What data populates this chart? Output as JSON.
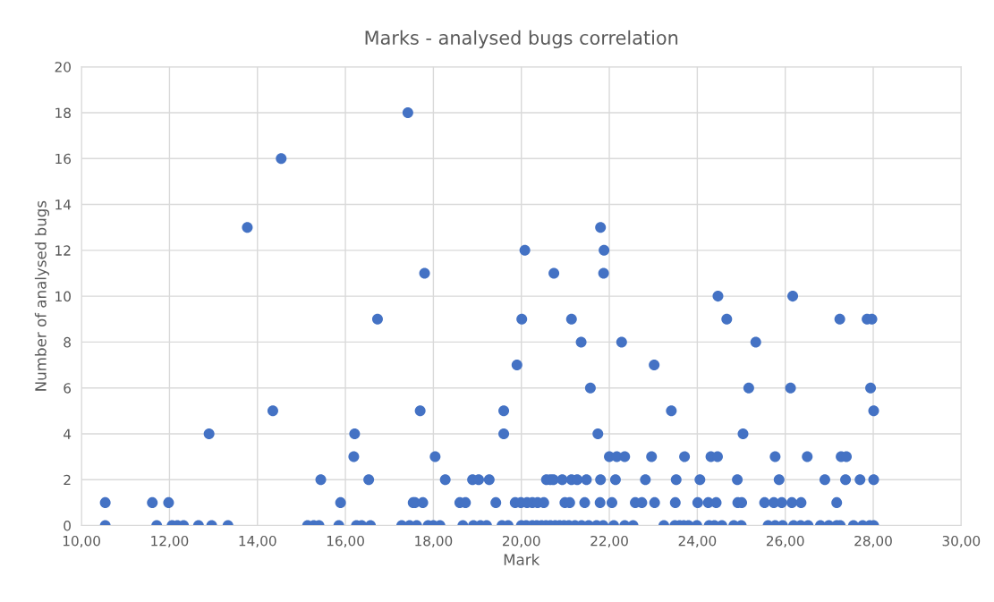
{
  "chart_data": {
    "type": "scatter",
    "title": "Marks - analysed bugs correlation",
    "xlabel": "Mark",
    "ylabel": "Number of analysed bugs",
    "series": [
      {
        "color": "#4472c4",
        "x": [
          10.54,
          11.71,
          12.06,
          12.18,
          12.32,
          12.66,
          12.96,
          13.33,
          10.54,
          11.61,
          11.98,
          12.9,
          13.77,
          14.35,
          14.54,
          16.73,
          17.42,
          17.8,
          15.44,
          16.53,
          18.27,
          18.89,
          19.03,
          19.27,
          16.19,
          18.04,
          16.21,
          19.6,
          17.7,
          19.6,
          15.89,
          17.54,
          17.58,
          17.76,
          18.6,
          18.73,
          19.42,
          19.86,
          15.14,
          15.28,
          15.4,
          15.85,
          16.25,
          16.37,
          16.57,
          17.28,
          17.46,
          17.62,
          17.88,
          18.0,
          18.15,
          18.67,
          18.91,
          19.07,
          19.21,
          19.56,
          19.7,
          20.0,
          21.8,
          20.08,
          21.88,
          20.74,
          21.87,
          24.47,
          26.17,
          20.01,
          21.14,
          24.67,
          27.24,
          27.86,
          27.97,
          21.36,
          22.28,
          25.33,
          19.9,
          23.02,
          21.57,
          25.17,
          26.12,
          27.94,
          23.41,
          28.01,
          21.74,
          25.04,
          22.0,
          22.17,
          22.35,
          22.96,
          23.71,
          24.31,
          24.46,
          25.77,
          26.5,
          27.27,
          27.39,
          20.57,
          20.66,
          20.73,
          20.93,
          21.14,
          21.27,
          21.48,
          21.8,
          22.14,
          22.82,
          23.52,
          24.06,
          24.91,
          25.86,
          26.9,
          27.37,
          27.7,
          28.01,
          19.99,
          20.13,
          20.25,
          20.37,
          20.51,
          20.99,
          21.1,
          21.44,
          21.79,
          22.06,
          22.59,
          22.74,
          23.03,
          23.5,
          24.01,
          24.25,
          24.43,
          24.92,
          25.01,
          25.53,
          25.74,
          25.92,
          26.15,
          26.36,
          27.17,
          20.11,
          20.25,
          20.35,
          20.46,
          20.56,
          20.66,
          20.77,
          20.87,
          20.97,
          21.08,
          21.22,
          21.37,
          21.53,
          21.71,
          21.86,
          22.1,
          22.35,
          22.54,
          23.24,
          23.49,
          23.6,
          23.69,
          23.8,
          23.99,
          24.27,
          24.39,
          24.56,
          24.83,
          25.0,
          25.61,
          25.77,
          25.94,
          26.19,
          26.35,
          26.52,
          26.8,
          26.99,
          27.17,
          27.25,
          27.55,
          27.76,
          27.92,
          28.01
        ],
        "values": [
          0,
          0,
          0,
          0,
          0,
          0,
          0,
          0,
          1,
          1,
          1,
          4,
          13,
          5,
          16,
          9,
          18,
          11,
          2,
          2,
          2,
          2,
          2,
          2,
          3,
          3,
          4,
          4,
          5,
          5,
          1,
          1,
          1,
          1,
          1,
          1,
          1,
          1,
          0,
          0,
          0,
          0,
          0,
          0,
          0,
          0,
          0,
          0,
          0,
          0,
          0,
          0,
          0,
          0,
          0,
          0,
          0,
          0,
          13,
          12,
          12,
          11,
          11,
          10,
          10,
          9,
          9,
          9,
          9,
          9,
          9,
          8,
          8,
          8,
          7,
          7,
          6,
          6,
          6,
          6,
          5,
          5,
          4,
          4,
          3,
          3,
          3,
          3,
          3,
          3,
          3,
          3,
          3,
          3,
          3,
          2,
          2,
          2,
          2,
          2,
          2,
          2,
          2,
          2,
          2,
          2,
          2,
          2,
          2,
          2,
          2,
          2,
          2,
          1,
          1,
          1,
          1,
          1,
          1,
          1,
          1,
          1,
          1,
          1,
          1,
          1,
          1,
          1,
          1,
          1,
          1,
          1,
          1,
          1,
          1,
          1,
          1,
          1,
          0,
          0,
          0,
          0,
          0,
          0,
          0,
          0,
          0,
          0,
          0,
          0,
          0,
          0,
          0,
          0,
          0,
          0,
          0,
          0,
          0,
          0,
          0,
          0,
          0,
          0,
          0,
          0,
          0,
          0,
          0,
          0,
          0,
          0,
          0,
          0,
          0,
          0,
          0,
          0,
          0,
          0,
          0
        ]
      }
    ],
    "xlim": [
      10,
      30
    ],
    "xticks": [
      {
        "value": 10,
        "label": "10,00"
      },
      {
        "value": 12,
        "label": "12,00"
      },
      {
        "value": 14,
        "label": "14,00"
      },
      {
        "value": 16,
        "label": "16,00"
      },
      {
        "value": 18,
        "label": "18,00"
      },
      {
        "value": 20,
        "label": "20,00"
      },
      {
        "value": 22,
        "label": "22,00"
      },
      {
        "value": 24,
        "label": "24,00"
      },
      {
        "value": 26,
        "label": "26,00"
      },
      {
        "value": 28,
        "label": "28,00"
      },
      {
        "value": 30,
        "label": "30,00"
      }
    ],
    "ylim": [
      0,
      20
    ],
    "yticks": [
      0,
      2,
      4,
      6,
      8,
      10,
      12,
      14,
      16,
      18,
      20
    ],
    "grid": true,
    "marker": "circle"
  }
}
